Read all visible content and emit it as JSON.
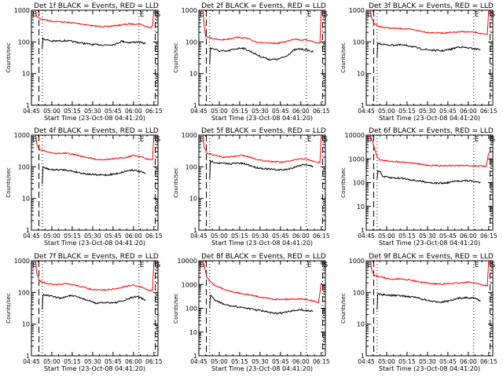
{
  "chart_data": {
    "type": "line",
    "layout": "3x3 grid",
    "xlabel": "Start Time (23-Oct-08 04:41:20)",
    "ylabel": "Counts/sec",
    "x_ticks": [
      "04:45",
      "05:00",
      "05:15",
      "05:30",
      "05:45",
      "06:00",
      "06:15"
    ],
    "x_range_minutes_from_0445": [
      0,
      93
    ],
    "y_scale": "log",
    "markers": {
      "labels": [
        "B",
        "E",
        "S"
      ],
      "dashed_line_min": 5.5,
      "dotted_start_min": 8,
      "dotted_end_min": 79,
      "dashdot_line_min": 91
    },
    "colors": {
      "events": "#000000",
      "lld": "#ff0000"
    },
    "panels": [
      {
        "title": "Det 1f BLACK = Events, RED = LLD",
        "ylim": [
          1,
          1000
        ],
        "y_ticks": [
          "1",
          "10",
          "100",
          "1000"
        ],
        "red": [
          [
            3,
            1000
          ],
          [
            4,
            600
          ],
          [
            8,
            520
          ],
          [
            15,
            450
          ],
          [
            25,
            420
          ],
          [
            35,
            380
          ],
          [
            45,
            320
          ],
          [
            55,
            300
          ],
          [
            65,
            340
          ],
          [
            72,
            370
          ],
          [
            80,
            360
          ],
          [
            85,
            300
          ],
          [
            88,
            290
          ],
          [
            89,
            320
          ],
          [
            90,
            1000
          ]
        ],
        "black": [
          [
            8,
            60
          ],
          [
            8.5,
            125
          ],
          [
            15,
            105
          ],
          [
            25,
            110
          ],
          [
            35,
            95
          ],
          [
            45,
            82
          ],
          [
            55,
            80
          ],
          [
            62,
            85
          ],
          [
            66,
            105
          ],
          [
            72,
            95
          ],
          [
            78,
            100
          ],
          [
            84,
            88
          ]
        ]
      },
      {
        "title": "Det 2f BLACK = Events, RED = LLD",
        "ylim": [
          1,
          1000
        ],
        "y_ticks": [
          "1",
          "10",
          "100",
          "1000"
        ],
        "red": [
          [
            3,
            1000
          ],
          [
            4,
            300
          ],
          [
            5,
            150
          ],
          [
            10,
            130
          ],
          [
            15,
            115
          ],
          [
            20,
            120
          ],
          [
            28,
            140
          ],
          [
            35,
            130
          ],
          [
            42,
            100
          ],
          [
            50,
            90
          ],
          [
            58,
            90
          ],
          [
            65,
            105
          ],
          [
            70,
            125
          ],
          [
            75,
            115
          ],
          [
            80,
            115
          ],
          [
            86,
            95
          ],
          [
            89,
            90
          ],
          [
            90,
            1000
          ]
        ],
        "black": [
          [
            8,
            20
          ],
          [
            8.5,
            65
          ],
          [
            15,
            52
          ],
          [
            20,
            50
          ],
          [
            27,
            60
          ],
          [
            32,
            65
          ],
          [
            38,
            50
          ],
          [
            45,
            35
          ],
          [
            52,
            28
          ],
          [
            58,
            28
          ],
          [
            64,
            35
          ],
          [
            70,
            55
          ],
          [
            74,
            60
          ],
          [
            80,
            55
          ],
          [
            84,
            48
          ]
        ]
      },
      {
        "title": "Det 3f BLACK = Events, RED = LLD",
        "ylim": [
          1,
          1000
        ],
        "y_ticks": [
          "1",
          "10",
          "100",
          "1000"
        ],
        "red": [
          [
            3,
            1000
          ],
          [
            4,
            550
          ],
          [
            6,
            380
          ],
          [
            10,
            300
          ],
          [
            18,
            270
          ],
          [
            28,
            260
          ],
          [
            35,
            240
          ],
          [
            45,
            200
          ],
          [
            55,
            190
          ],
          [
            65,
            200
          ],
          [
            72,
            210
          ],
          [
            80,
            200
          ],
          [
            86,
            175
          ],
          [
            89,
            170
          ],
          [
            90,
            1000
          ]
        ],
        "black": [
          [
            8,
            35
          ],
          [
            8.5,
            90
          ],
          [
            15,
            80
          ],
          [
            25,
            80
          ],
          [
            32,
            75
          ],
          [
            40,
            60
          ],
          [
            48,
            55
          ],
          [
            55,
            52
          ],
          [
            62,
            58
          ],
          [
            68,
            70
          ],
          [
            74,
            65
          ],
          [
            80,
            60
          ],
          [
            84,
            58
          ]
        ]
      },
      {
        "title": "Det 4f BLACK = Events, RED = LLD",
        "ylim": [
          1,
          1000
        ],
        "y_ticks": [
          "1",
          "10",
          "100",
          "1000"
        ],
        "red": [
          [
            3,
            1000
          ],
          [
            4,
            500
          ],
          [
            6,
            350
          ],
          [
            12,
            300
          ],
          [
            18,
            260
          ],
          [
            25,
            270
          ],
          [
            32,
            240
          ],
          [
            40,
            200
          ],
          [
            48,
            170
          ],
          [
            55,
            170
          ],
          [
            62,
            180
          ],
          [
            70,
            200
          ],
          [
            75,
            230
          ],
          [
            80,
            210
          ],
          [
            86,
            170
          ],
          [
            89,
            170
          ],
          [
            90,
            1000
          ]
        ],
        "black": [
          [
            8,
            28
          ],
          [
            8.5,
            95
          ],
          [
            15,
            80
          ],
          [
            25,
            80
          ],
          [
            32,
            70
          ],
          [
            40,
            60
          ],
          [
            48,
            55
          ],
          [
            55,
            55
          ],
          [
            62,
            60
          ],
          [
            68,
            70
          ],
          [
            74,
            80
          ],
          [
            80,
            70
          ],
          [
            84,
            60
          ]
        ]
      },
      {
        "title": "Det 5f BLACK = Events, RED = LLD",
        "ylim": [
          1,
          1000
        ],
        "y_ticks": [
          "1",
          "10",
          "100",
          "1000"
        ],
        "red": [
          [
            3,
            1000
          ],
          [
            4,
            400
          ],
          [
            6,
            270
          ],
          [
            12,
            230
          ],
          [
            18,
            200
          ],
          [
            25,
            210
          ],
          [
            32,
            230
          ],
          [
            38,
            200
          ],
          [
            45,
            160
          ],
          [
            55,
            145
          ],
          [
            62,
            140
          ],
          [
            68,
            155
          ],
          [
            75,
            180
          ],
          [
            80,
            170
          ],
          [
            86,
            140
          ],
          [
            89,
            135
          ],
          [
            90,
            1000
          ]
        ],
        "black": [
          [
            8,
            40
          ],
          [
            8.5,
            150
          ],
          [
            15,
            130
          ],
          [
            22,
            125
          ],
          [
            30,
            130
          ],
          [
            35,
            120
          ],
          [
            42,
            95
          ],
          [
            50,
            85
          ],
          [
            58,
            80
          ],
          [
            63,
            80
          ],
          [
            68,
            90
          ],
          [
            74,
            110
          ],
          [
            78,
            120
          ],
          [
            84,
            100
          ]
        ]
      },
      {
        "title": "Det 6f BLACK = Events, RED = LLD",
        "ylim": [
          1,
          10000
        ],
        "y_ticks": [
          "1",
          "10",
          "100",
          "1000",
          "10000"
        ],
        "red": [
          [
            0,
            8000
          ],
          [
            2,
            9000
          ],
          [
            3,
            10000
          ],
          [
            6,
            3000
          ],
          [
            8,
            1200
          ],
          [
            10,
            900
          ],
          [
            15,
            820
          ],
          [
            25,
            750
          ],
          [
            35,
            650
          ],
          [
            45,
            540
          ],
          [
            55,
            520
          ],
          [
            65,
            520
          ],
          [
            75,
            520
          ],
          [
            84,
            500
          ],
          [
            88,
            470
          ],
          [
            90,
            1800
          ]
        ],
        "black": [
          [
            8,
            130
          ],
          [
            8.5,
            320
          ],
          [
            10,
            300
          ],
          [
            12,
            180
          ],
          [
            18,
            160
          ],
          [
            28,
            150
          ],
          [
            35,
            125
          ],
          [
            42,
            110
          ],
          [
            50,
            95
          ],
          [
            58,
            95
          ],
          [
            64,
            110
          ],
          [
            70,
            120
          ],
          [
            76,
            120
          ],
          [
            84,
            100
          ]
        ]
      },
      {
        "title": "Det 7f BLACK = Events, RED = LLD",
        "ylim": [
          1,
          1000
        ],
        "y_ticks": [
          "1",
          "10",
          "100",
          "1000"
        ],
        "red": [
          [
            3,
            1000
          ],
          [
            4,
            400
          ],
          [
            6,
            230
          ],
          [
            12,
            190
          ],
          [
            18,
            170
          ],
          [
            25,
            190
          ],
          [
            32,
            170
          ],
          [
            40,
            140
          ],
          [
            45,
            120
          ],
          [
            55,
            120
          ],
          [
            62,
            130
          ],
          [
            70,
            160
          ],
          [
            75,
            170
          ],
          [
            80,
            150
          ],
          [
            86,
            120
          ],
          [
            89,
            115
          ],
          [
            90,
            1000
          ]
        ],
        "black": [
          [
            8,
            30
          ],
          [
            8.5,
            85
          ],
          [
            15,
            75
          ],
          [
            22,
            65
          ],
          [
            28,
            80
          ],
          [
            35,
            70
          ],
          [
            42,
            55
          ],
          [
            48,
            45
          ],
          [
            55,
            48
          ],
          [
            62,
            48
          ],
          [
            68,
            55
          ],
          [
            74,
            70
          ],
          [
            78,
            75
          ],
          [
            84,
            55
          ]
        ]
      },
      {
        "title": "Det 8f BLACK = Events, RED = LLD",
        "ylim": [
          1,
          10000
        ],
        "y_ticks": [
          "1",
          "10",
          "100",
          "1000",
          "10000"
        ],
        "red": [
          [
            0,
            8000
          ],
          [
            2,
            9500
          ],
          [
            3,
            10000
          ],
          [
            4,
            6000
          ],
          [
            6,
            2000
          ],
          [
            8,
            1400
          ],
          [
            12,
            900
          ],
          [
            20,
            600
          ],
          [
            28,
            450
          ],
          [
            36,
            380
          ],
          [
            45,
            300
          ],
          [
            55,
            240
          ],
          [
            65,
            240
          ],
          [
            75,
            250
          ],
          [
            82,
            220
          ],
          [
            88,
            170
          ],
          [
            90,
            1200
          ]
        ],
        "black": [
          [
            8,
            100
          ],
          [
            8.5,
            350
          ],
          [
            12,
            220
          ],
          [
            18,
            150
          ],
          [
            25,
            120
          ],
          [
            32,
            110
          ],
          [
            40,
            90
          ],
          [
            48,
            75
          ],
          [
            55,
            60
          ],
          [
            62,
            65
          ],
          [
            68,
            75
          ],
          [
            74,
            90
          ],
          [
            78,
            80
          ],
          [
            84,
            75
          ]
        ]
      },
      {
        "title": "Det 9f BLACK = Events, RED = LLD",
        "ylim": [
          1,
          1000
        ],
        "y_ticks": [
          "1",
          "10",
          "100",
          "1000"
        ],
        "red": [
          [
            3,
            1000
          ],
          [
            4,
            500
          ],
          [
            6,
            350
          ],
          [
            12,
            300
          ],
          [
            18,
            260
          ],
          [
            25,
            270
          ],
          [
            32,
            250
          ],
          [
            40,
            210
          ],
          [
            48,
            190
          ],
          [
            55,
            185
          ],
          [
            62,
            190
          ],
          [
            70,
            200
          ],
          [
            75,
            210
          ],
          [
            80,
            200
          ],
          [
            86,
            170
          ],
          [
            89,
            160
          ],
          [
            90,
            1000
          ]
        ],
        "black": [
          [
            8,
            30
          ],
          [
            8.5,
            90
          ],
          [
            15,
            82
          ],
          [
            22,
            80
          ],
          [
            30,
            75
          ],
          [
            36,
            70
          ],
          [
            42,
            60
          ],
          [
            48,
            52
          ],
          [
            55,
            50
          ],
          [
            62,
            55
          ],
          [
            68,
            65
          ],
          [
            74,
            70
          ],
          [
            80,
            65
          ],
          [
            84,
            55
          ]
        ]
      }
    ]
  }
}
